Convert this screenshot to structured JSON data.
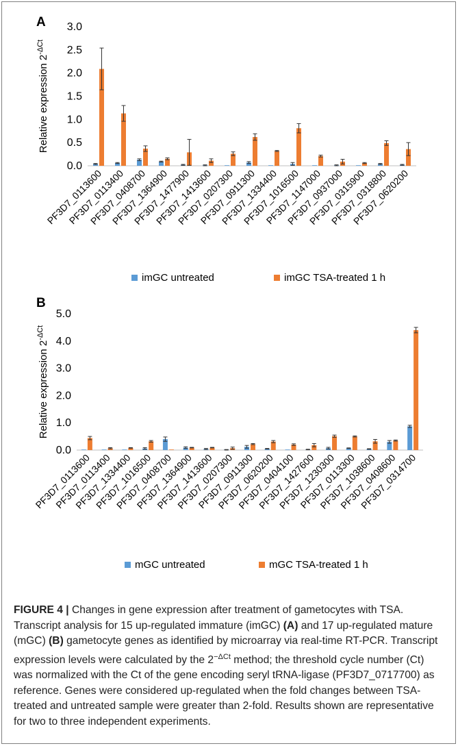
{
  "colors": {
    "untreated": "#5b9bd5",
    "treated": "#ed7d31",
    "errorbar": "#333333"
  },
  "chart_data": [
    {
      "type": "bar",
      "panel": "A",
      "ylabel_prefix": "Relative expression 2",
      "ylabel_sup": "-ΔCt",
      "ylim": [
        0,
        3.0
      ],
      "yticks": [
        "0.0",
        "0.5",
        "1.0",
        "1.5",
        "2.0",
        "2.5",
        "3.0"
      ],
      "categories": [
        "PF3D7_0113600",
        "PF3D7_0113400",
        "PF3D7_0408700",
        "PF3D7_1364900",
        "PF3D7_1477900",
        "PF3D7_1413600",
        "PF3D7_0207300",
        "PF3D7_0911300",
        "PF3D7_1334400",
        "PF3D7_1016500",
        "PF3D7_1147000",
        "PF3D7_0937000",
        "PF3D7_0315900",
        "PF3D7_0318800",
        "PF3D7_0620200"
      ],
      "series": [
        {
          "name": "imGC untreated",
          "values": [
            0.04,
            0.06,
            0.13,
            0.09,
            0.02,
            0.01,
            0.01,
            0.07,
            0.0,
            0.04,
            0.0,
            0.01,
            0.0,
            0.04,
            0.02
          ],
          "errors": [
            0.01,
            0.01,
            0.02,
            0.01,
            0.01,
            0.01,
            0.0,
            0.02,
            0.0,
            0.03,
            0.0,
            0.01,
            0.0,
            0.01,
            0.01
          ]
        },
        {
          "name": "imGC TSA-treated 1 h",
          "values": [
            2.09,
            1.13,
            0.37,
            0.15,
            0.29,
            0.11,
            0.26,
            0.62,
            0.32,
            0.81,
            0.21,
            0.09,
            0.06,
            0.49,
            0.36
          ],
          "errors": [
            0.45,
            0.17,
            0.06,
            0.02,
            0.28,
            0.04,
            0.04,
            0.07,
            0.01,
            0.1,
            0.02,
            0.05,
            0.01,
            0.05,
            0.14
          ]
        }
      ]
    },
    {
      "type": "bar",
      "panel": "B",
      "ylabel_prefix": "Relative expression 2",
      "ylabel_sup": "-ΔCt",
      "ylim": [
        0,
        5.0
      ],
      "yticks": [
        "0.0",
        "1.0",
        "2.0",
        "3.0",
        "4.0",
        "5.0"
      ],
      "categories": [
        "PF3D7_0113600",
        "PF3D7_0113400",
        "PF3D7_1334400",
        "PF3D7_1016500",
        "PF3D7_0408700",
        "PF3D7_1364900",
        "PF3D7_1413600",
        "PF3D7_0207300",
        "PF3D7_0911300",
        "PF3D7_0620200",
        "PF3D7_0404100",
        "PF3D7_1427600",
        "PF3D7_1230300",
        "PF3D7_0113300",
        "PF3D7_1038600",
        "PF3D7_0408600",
        "PF3D7_0314700"
      ],
      "series": [
        {
          "name": "mGC untreated",
          "values": [
            0.01,
            0.01,
            0.01,
            0.06,
            0.4,
            0.09,
            0.04,
            0.01,
            0.12,
            0.05,
            0.01,
            0.02,
            0.07,
            0.07,
            0.04,
            0.3,
            0.87
          ],
          "errors": [
            0.0,
            0.0,
            0.0,
            0.03,
            0.08,
            0.03,
            0.02,
            0.01,
            0.05,
            0.01,
            0.0,
            0.01,
            0.03,
            0.01,
            0.01,
            0.05,
            0.04
          ]
        },
        {
          "name": "mGC TSA-treated 1 h",
          "values": [
            0.44,
            0.07,
            0.08,
            0.32,
            0.02,
            0.09,
            0.09,
            0.07,
            0.22,
            0.31,
            0.2,
            0.18,
            0.51,
            0.5,
            0.32,
            0.35,
            4.4
          ],
          "errors": [
            0.06,
            0.02,
            0.01,
            0.03,
            0.0,
            0.01,
            0.01,
            0.04,
            0.02,
            0.04,
            0.03,
            0.06,
            0.04,
            0.02,
            0.07,
            0.02,
            0.1
          ]
        }
      ]
    }
  ],
  "caption": {
    "label": "FIGURE 4 |",
    "text_1": " Changes in gene expression after treatment of gametocytes with TSA. Transcript analysis for 15 up-regulated immature (imGC) ",
    "ref_a": "(A)",
    "text_2": " and 17 up-regulated mature (mGC) ",
    "ref_b": "(B)",
    "text_3": " gametocyte genes as identified by microarray via real-time RT-PCR. Transcript expression levels were calculated by the 2",
    "sup": "−ΔCt",
    "text_4": " method; the threshold cycle number (Ct) was normalized with the Ct of the gene encoding seryl tRNA-ligase (PF3D7_0717700) as reference. Genes were considered up-regulated when the fold changes between TSA-treated and untreated sample were greater than 2-fold. Results shown are representative for two to three independent experiments."
  }
}
